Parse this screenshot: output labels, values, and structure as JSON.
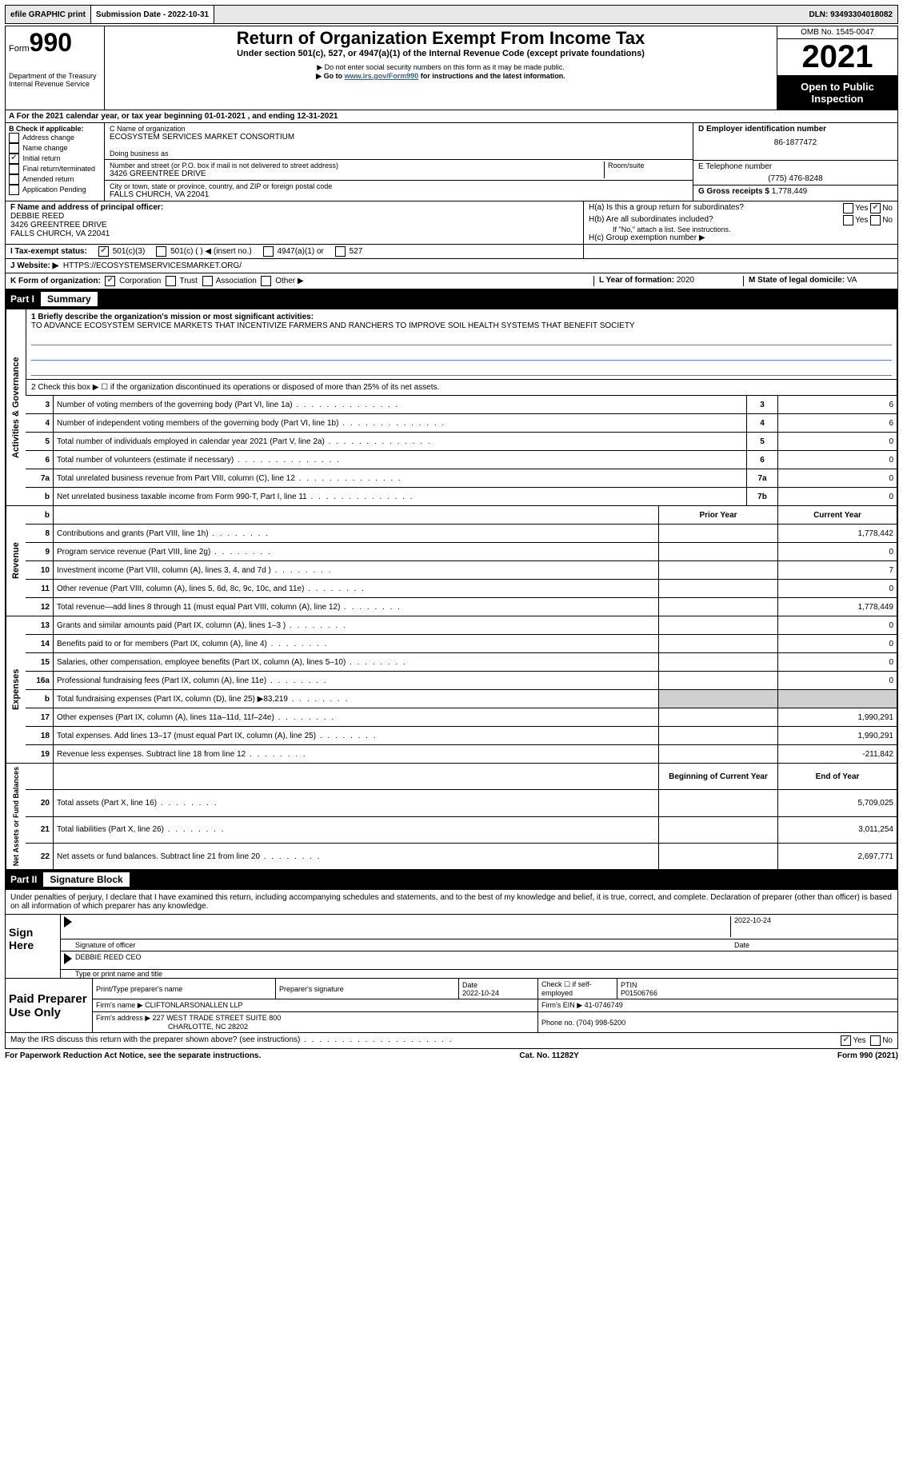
{
  "topbar": {
    "efile": "efile GRAPHIC print",
    "submission_label": "Submission Date - 2022-10-31",
    "dln": "DLN: 93493304018082"
  },
  "header": {
    "form_word": "Form",
    "form_number": "990",
    "dept": "Department of the Treasury",
    "irs": "Internal Revenue Service",
    "title": "Return of Organization Exempt From Income Tax",
    "subtitle": "Under section 501(c), 527, or 4947(a)(1) of the Internal Revenue Code (except private foundations)",
    "note1": "▶ Do not enter social security numbers on this form as it may be made public.",
    "note2_pre": "▶ Go to ",
    "note2_link": "www.irs.gov/Form990",
    "note2_post": " for instructions and the latest information.",
    "omb": "OMB No. 1545-0047",
    "year": "2021",
    "open": "Open to Public Inspection"
  },
  "period": "A For the 2021 calendar year, or tax year beginning 01-01-2021   , and ending 12-31-2021",
  "colB": {
    "label": "B Check if applicable:",
    "items": [
      "Address change",
      "Name change",
      "Initial return",
      "Final return/terminated",
      "Amended return",
      "Application Pending"
    ],
    "checked_index": 2
  },
  "colC": {
    "name_label": "C Name of organization",
    "name": "ECOSYSTEM SERVICES MARKET CONSORTIUM",
    "dba_label": "Doing business as",
    "addr_label": "Number and street (or P.O. box if mail is not delivered to street address)",
    "room_label": "Room/suite",
    "addr": "3426 GREENTREE DRIVE",
    "city_label": "City or town, state or province, country, and ZIP or foreign postal code",
    "city": "FALLS CHURCH, VA  22041"
  },
  "colD": {
    "ein_label": "D Employer identification number",
    "ein": "86-1877472",
    "phone_label": "E Telephone number",
    "phone": "(775) 476-8248",
    "gross_label": "G Gross receipts $",
    "gross": "1,778,449"
  },
  "rowF": {
    "label": "F  Name and address of principal officer:",
    "name": "DEBBIE REED",
    "addr1": "3426 GREENTREE DRIVE",
    "addr2": "FALLS CHURCH, VA  22041"
  },
  "rowH": {
    "ha": "H(a)  Is this a group return for subordinates?",
    "hb": "H(b)  Are all subordinates included?",
    "hb_note": "If \"No,\" attach a list. See instructions.",
    "hc": "H(c)  Group exemption number ▶",
    "yes": "Yes",
    "no": "No"
  },
  "rowI": {
    "label": "I    Tax-exempt status:",
    "opt1": "501(c)(3)",
    "opt2": "501(c) (  ) ◀ (insert no.)",
    "opt3": "4947(a)(1) or",
    "opt4": "527"
  },
  "rowJ": {
    "label": "J   Website: ▶",
    "url": "HTTPS://ECOSYSTEMSERVICESMARKET.ORG/"
  },
  "rowK": {
    "label": "K Form of organization:",
    "opts": [
      "Corporation",
      "Trust",
      "Association",
      "Other ▶"
    ],
    "L_label": "L Year of formation:",
    "L_val": "2020",
    "M_label": "M State of legal domicile:",
    "M_val": "VA"
  },
  "partI": {
    "part": "Part I",
    "title": "Summary",
    "q1_label": "1  Briefly describe the organization's mission or most significant activities:",
    "q1_text": "TO ADVANCE ECOSYSTEM SERVICE MARKETS THAT INCENTIVIZE FARMERS AND RANCHERS TO IMPROVE SOIL HEALTH SYSTEMS THAT BENEFIT SOCIETY",
    "q2": "2   Check this box ▶ ☐  if the organization discontinued its operations or disposed of more than 25% of its net assets.",
    "tabs": {
      "gov": "Activities & Governance",
      "rev": "Revenue",
      "exp": "Expenses",
      "net": "Net Assets or Fund Balances"
    },
    "gov_rows": [
      {
        "n": "3",
        "label": "Number of voting members of the governing body (Part VI, line 1a)",
        "box": "3",
        "val": "6"
      },
      {
        "n": "4",
        "label": "Number of independent voting members of the governing body (Part VI, line 1b)",
        "box": "4",
        "val": "6"
      },
      {
        "n": "5",
        "label": "Total number of individuals employed in calendar year 2021 (Part V, line 2a)",
        "box": "5",
        "val": "0"
      },
      {
        "n": "6",
        "label": "Total number of volunteers (estimate if necessary)",
        "box": "6",
        "val": "0"
      },
      {
        "n": "7a",
        "label": "Total unrelated business revenue from Part VIII, column (C), line 12",
        "box": "7a",
        "val": "0"
      },
      {
        "n": "b",
        "label": "Net unrelated business taxable income from Form 990-T, Part I, line 11",
        "box": "7b",
        "val": "0"
      }
    ],
    "col_headers": {
      "prior": "Prior Year",
      "current": "Current Year"
    },
    "rev_rows": [
      {
        "n": "8",
        "label": "Contributions and grants (Part VIII, line 1h)",
        "prior": "",
        "cur": "1,778,442"
      },
      {
        "n": "9",
        "label": "Program service revenue (Part VIII, line 2g)",
        "prior": "",
        "cur": "0"
      },
      {
        "n": "10",
        "label": "Investment income (Part VIII, column (A), lines 3, 4, and 7d )",
        "prior": "",
        "cur": "7"
      },
      {
        "n": "11",
        "label": "Other revenue (Part VIII, column (A), lines 5, 6d, 8c, 9c, 10c, and 11e)",
        "prior": "",
        "cur": "0"
      },
      {
        "n": "12",
        "label": "Total revenue—add lines 8 through 11 (must equal Part VIII, column (A), line 12)",
        "prior": "",
        "cur": "1,778,449"
      }
    ],
    "exp_rows": [
      {
        "n": "13",
        "label": "Grants and similar amounts paid (Part IX, column (A), lines 1–3 )",
        "prior": "",
        "cur": "0"
      },
      {
        "n": "14",
        "label": "Benefits paid to or for members (Part IX, column (A), line 4)",
        "prior": "",
        "cur": "0"
      },
      {
        "n": "15",
        "label": "Salaries, other compensation, employee benefits (Part IX, column (A), lines 5–10)",
        "prior": "",
        "cur": "0"
      },
      {
        "n": "16a",
        "label": "Professional fundraising fees (Part IX, column (A), line 11e)",
        "prior": "",
        "cur": "0"
      },
      {
        "n": "b",
        "label": "Total fundraising expenses (Part IX, column (D), line 25) ▶83,219",
        "prior": "grey",
        "cur": "grey"
      },
      {
        "n": "17",
        "label": "Other expenses (Part IX, column (A), lines 11a–11d, 11f–24e)",
        "prior": "",
        "cur": "1,990,291"
      },
      {
        "n": "18",
        "label": "Total expenses. Add lines 13–17 (must equal Part IX, column (A), line 25)",
        "prior": "",
        "cur": "1,990,291"
      },
      {
        "n": "19",
        "label": "Revenue less expenses. Subtract line 18 from line 12",
        "prior": "",
        "cur": "-211,842"
      }
    ],
    "net_headers": {
      "begin": "Beginning of Current Year",
      "end": "End of Year"
    },
    "net_rows": [
      {
        "n": "20",
        "label": "Total assets (Part X, line 16)",
        "prior": "",
        "cur": "5,709,025"
      },
      {
        "n": "21",
        "label": "Total liabilities (Part X, line 26)",
        "prior": "",
        "cur": "3,011,254"
      },
      {
        "n": "22",
        "label": "Net assets or fund balances. Subtract line 21 from line 20",
        "prior": "",
        "cur": "2,697,771"
      }
    ]
  },
  "partII": {
    "part": "Part II",
    "title": "Signature Block",
    "declaration": "Under penalties of perjury, I declare that I have examined this return, including accompanying schedules and statements, and to the best of my knowledge and belief, it is true, correct, and complete. Declaration of preparer (other than officer) is based on all information of which preparer has any knowledge."
  },
  "sign": {
    "label": "Sign Here",
    "sig_label": "Signature of officer",
    "date": "2022-10-24",
    "date_label": "Date",
    "name": "DEBBIE REED CEO",
    "name_label": "Type or print name and title"
  },
  "paid": {
    "label": "Paid Preparer Use Only",
    "h1": "Print/Type preparer's name",
    "h2": "Preparer's signature",
    "h3_label": "Date",
    "h3": "2022-10-24",
    "h4": "Check ☐ if self-employed",
    "h5_label": "PTIN",
    "h5": "P01506766",
    "firm_label": "Firm's name     ▶",
    "firm": "CLIFTONLARSONALLEN LLP",
    "ein_label": "Firm's EIN ▶",
    "ein": "41-0746749",
    "addr_label": "Firm's address ▶",
    "addr1": "227 WEST TRADE STREET SUITE 800",
    "addr2": "CHARLOTTE, NC  28202",
    "phone_label": "Phone no.",
    "phone": "(704) 998-5200"
  },
  "discuss": {
    "text": "May the IRS discuss this return with the preparer shown above? (see instructions)",
    "yes": "Yes",
    "no": "No"
  },
  "footer": {
    "left": "For Paperwork Reduction Act Notice, see the separate instructions.",
    "mid": "Cat. No. 11282Y",
    "right": "Form 990 (2021)"
  }
}
